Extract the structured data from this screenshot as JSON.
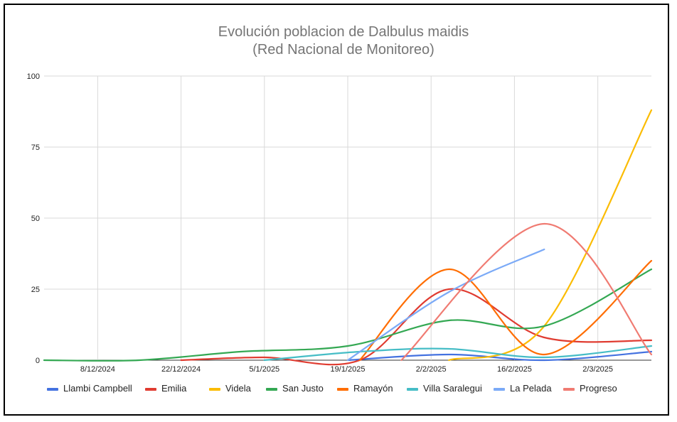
{
  "chart_data": {
    "type": "line",
    "title": "Evolución poblacion de Dalbulus maidis",
    "subtitle": "(Red Nacional de Monitoreo)",
    "x_tick_labels": [
      "8/12/2024",
      "22/12/2024",
      "5/1/2025",
      "19/1/2025",
      "2/2/2025",
      "16/2/2025",
      "2/3/2025"
    ],
    "xlim": [
      "2024-11-29",
      "2025-03-11"
    ],
    "ylim": [
      0,
      100
    ],
    "y_ticks": [
      0,
      25,
      50,
      75,
      100
    ],
    "grid": true,
    "legend_position": "bottom",
    "series": [
      {
        "name": "Llambi Campbell",
        "color": "#4472e0",
        "x": [
          "2025-01-19",
          "2025-02-05",
          "2025-02-21",
          "2025-03-11"
        ],
        "values": [
          0,
          2,
          0,
          3
        ]
      },
      {
        "name": "Emilia",
        "color": "#e03c31",
        "x": [
          "2024-12-22",
          "2025-01-05",
          "2025-01-21",
          "2025-02-05",
          "2025-02-21",
          "2025-03-11"
        ],
        "values": [
          0,
          1,
          0,
          25,
          8,
          7
        ]
      },
      {
        "name": "Videla",
        "color": "#fbbc04",
        "x": [
          "2025-02-05",
          "2025-02-21",
          "2025-03-11"
        ],
        "values": [
          0,
          12,
          88
        ]
      },
      {
        "name": "San Justo",
        "color": "#34a853",
        "x": [
          "2024-11-29",
          "2024-12-15",
          "2025-01-01",
          "2025-01-19",
          "2025-02-05",
          "2025-02-21",
          "2025-03-11"
        ],
        "values": [
          0,
          0,
          3,
          5,
          14,
          12,
          32
        ]
      },
      {
        "name": "Ramayón",
        "color": "#ff6d01",
        "x": [
          "2025-01-21",
          "2025-02-05",
          "2025-02-21",
          "2025-03-11"
        ],
        "values": [
          0,
          32,
          2,
          35
        ]
      },
      {
        "name": "Villa Saralegui",
        "color": "#46bdc6",
        "x": [
          "2025-01-05",
          "2025-01-21",
          "2025-02-05",
          "2025-02-21",
          "2025-03-11"
        ],
        "values": [
          0,
          3,
          4,
          1,
          5
        ]
      },
      {
        "name": "La Pelada",
        "color": "#7baaf7",
        "x": [
          "2025-01-19",
          "2025-02-05",
          "2025-02-21"
        ],
        "values": [
          0,
          24,
          39
        ]
      },
      {
        "name": "Progreso",
        "color": "#f07b72",
        "x": [
          "2025-01-28",
          "2025-02-21",
          "2025-03-11"
        ],
        "values": [
          0,
          48,
          2
        ]
      }
    ]
  }
}
